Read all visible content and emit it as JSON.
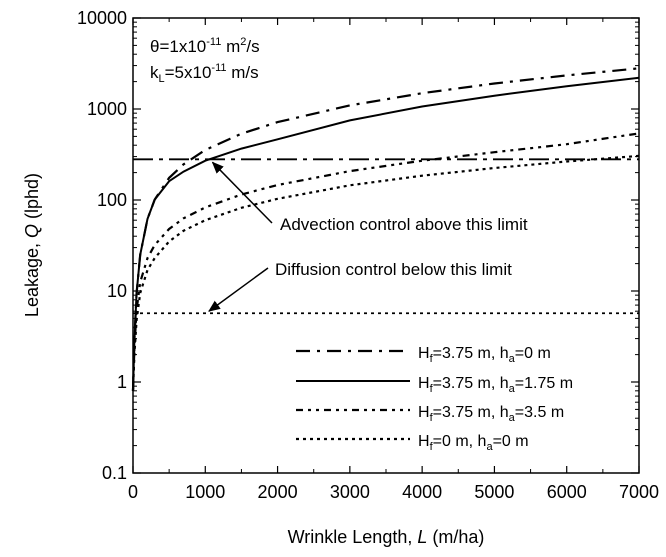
{
  "chart_data": {
    "type": "line",
    "log_y": true,
    "xlim": [
      0,
      7000
    ],
    "ylim": [
      0.1,
      10000
    ],
    "x_ticks": [
      0,
      1000,
      2000,
      3000,
      4000,
      5000,
      6000,
      7000
    ],
    "y_ticks": [
      0.1,
      1,
      10,
      100,
      1000,
      10000
    ],
    "x_tick_labels": [
      "0",
      "1000",
      "2000",
      "3000",
      "4000",
      "5000",
      "6000",
      "7000"
    ],
    "y_tick_labels": [
      "0.1",
      "1",
      "10",
      "100",
      "1000",
      "10000"
    ],
    "xlabel": {
      "pre": "Wrinkle Length, ",
      "var": "L",
      "post": " (m/ha)"
    },
    "ylabel": {
      "pre": "Leakage, ",
      "var": "Q",
      "post": " (lphd)"
    },
    "params": {
      "theta": {
        "pre": "θ=1x10",
        "exp": "-11",
        "post": " m",
        "post_exp": "2",
        "tail": "/s"
      },
      "kL": {
        "pre": "k",
        "sub": "L",
        "mid": "=5x10",
        "exp": "-11",
        "post": " m/s"
      }
    },
    "legend_position": "bottom-right",
    "series": [
      {
        "name": {
          "a": "H",
          "a_sub": "f",
          "b": "=3.75 m, h",
          "b_sub": "a",
          "c": "=0 m"
        },
        "style": "dash-dot",
        "x": [
          0,
          20,
          50,
          100,
          200,
          300,
          500,
          700,
          1000,
          1500,
          2000,
          3000,
          4000,
          5000,
          6000,
          7000
        ],
        "y": [
          0.8,
          2.9,
          9.5,
          25,
          62,
          101,
          175,
          247,
          355,
          535,
          718,
          1095,
          1490,
          1905,
          2340,
          2800
        ]
      },
      {
        "name": {
          "a": "H",
          "a_sub": "f",
          "b": "=3.75 m, h",
          "b_sub": "a",
          "c": "=1.75 m"
        },
        "style": "solid",
        "x": [
          0,
          20,
          50,
          100,
          200,
          300,
          500,
          700,
          1000,
          1500,
          2000,
          3000,
          4000,
          5000,
          6000,
          7000
        ],
        "y": [
          0.8,
          2.9,
          9.5,
          25,
          62,
          101,
          161,
          205,
          270,
          367,
          465,
          750,
          1065,
          1400,
          1780,
          2200
        ]
      },
      {
        "name": {
          "a": "H",
          "a_sub": "f",
          "b": "=3.75 m, h",
          "b_sub": "a",
          "c": "=3.5 m"
        },
        "style": "dash-dot-dot",
        "x": [
          0,
          20,
          50,
          100,
          200,
          300,
          500,
          700,
          1000,
          1500,
          2000,
          3000,
          4000,
          5000,
          6000,
          7000
        ],
        "y": [
          0.8,
          2.4,
          6.2,
          12.5,
          23,
          32,
          48,
          63,
          83,
          115,
          146,
          208,
          270,
          335,
          410,
          540
        ]
      },
      {
        "name": {
          "a": "H",
          "a_sub": "f",
          "b": "=0 m, h",
          "b_sub": "a",
          "c": "=0 m"
        },
        "style": "dotted",
        "x": [
          0,
          20,
          50,
          100,
          200,
          300,
          500,
          700,
          1000,
          1500,
          2000,
          3000,
          4000,
          5000,
          6000,
          7000
        ],
        "y": [
          0.8,
          2.0,
          4.8,
          9.5,
          17,
          23,
          35,
          46,
          60,
          82,
          103,
          145,
          185,
          225,
          265,
          305
        ]
      }
    ],
    "reference_lines": [
      {
        "y": 280,
        "style": "long-dash-dot",
        "label": "Advection control above this limit",
        "arrow_to_x": 1100
      },
      {
        "y": 5.7,
        "style": "dotted",
        "label": "Diffusion control below this limit",
        "arrow_to_x": 1050
      }
    ]
  }
}
